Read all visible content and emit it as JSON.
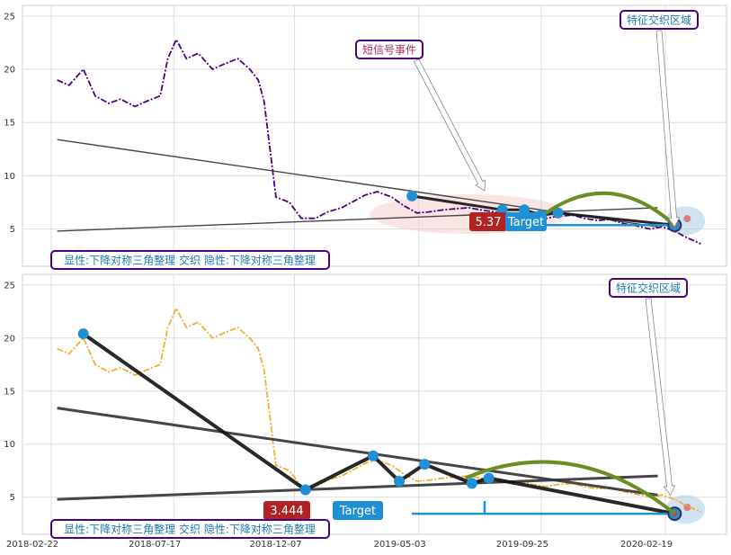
{
  "chart_data": [
    {
      "type": "line",
      "panel": "top",
      "ylim": [
        1.5,
        26
      ],
      "yticks": [
        5,
        10,
        15,
        20,
        25
      ],
      "line_color": "#4b0082",
      "x": [
        "2018-03-01",
        "2018-03-15",
        "2018-04-01",
        "2018-04-15",
        "2018-05-01",
        "2018-05-15",
        "2018-06-01",
        "2018-06-15",
        "2018-07-01",
        "2018-07-10",
        "2018-07-20",
        "2018-08-01",
        "2018-08-15",
        "2018-09-01",
        "2018-09-15",
        "2018-10-01",
        "2018-10-15",
        "2018-10-25",
        "2018-11-01",
        "2018-11-15",
        "2018-12-01",
        "2018-12-15",
        "2019-01-01",
        "2019-01-15",
        "2019-02-01",
        "2019-02-15",
        "2019-03-01",
        "2019-03-15",
        "2019-04-01",
        "2019-04-15",
        "2019-05-01",
        "2019-05-15",
        "2019-06-01",
        "2019-06-15",
        "2019-07-01",
        "2019-07-15",
        "2019-08-01",
        "2019-08-15",
        "2019-09-01",
        "2019-09-15",
        "2019-10-01",
        "2019-10-15",
        "2019-11-01",
        "2019-11-15",
        "2019-12-01",
        "2019-12-15",
        "2020-01-01",
        "2020-01-15",
        "2020-02-01",
        "2020-02-15",
        "2020-03-01",
        "2020-03-15",
        "2020-04-01"
      ],
      "values": [
        19.0,
        18.5,
        20.0,
        17.5,
        16.8,
        17.2,
        16.5,
        17.0,
        17.5,
        21.0,
        22.8,
        21.0,
        21.5,
        20.0,
        20.5,
        21.0,
        20.0,
        19.0,
        17.0,
        8.0,
        7.5,
        6.0,
        6.0,
        6.6,
        7.0,
        7.6,
        8.2,
        8.5,
        8.0,
        7.2,
        6.5,
        6.6,
        6.8,
        6.9,
        7.0,
        6.8,
        6.6,
        6.4,
        6.5,
        6.2,
        6.0,
        6.2,
        6.3,
        6.0,
        5.8,
        5.9,
        5.5,
        5.3,
        5.0,
        5.2,
        4.8,
        4.2,
        3.6
      ],
      "trend_lines": [
        {
          "from": [
            "2018-03-01",
            13.4
          ],
          "to": [
            "2020-02-10",
            5.2
          ]
        },
        {
          "from": [
            "2018-03-01",
            4.8
          ],
          "to": [
            "2020-02-10",
            7.0
          ]
        }
      ],
      "swing_points": [
        {
          "x": "2019-04-25",
          "y": 8.1
        },
        {
          "x": "2019-08-10",
          "y": 6.8
        },
        {
          "x": "2019-09-05",
          "y": 6.8
        },
        {
          "x": "2019-09-25",
          "y": 6.3
        },
        {
          "x": "2019-10-15",
          "y": 6.5
        },
        {
          "x": "2020-03-01",
          "y": 5.37
        }
      ],
      "target_level": 5.37,
      "price_label": "5.37",
      "target_label": "Target",
      "annotations": [
        {
          "text": "短信号事件",
          "points_to": [
            "2019-07-20",
            8.6
          ]
        },
        {
          "text": "特征交织区域",
          "points_to": [
            "2020-03-01",
            5.2
          ]
        }
      ],
      "legend": "显性:下降对称三角整理 交织 隐性:下降对称三角整理",
      "grid": true
    },
    {
      "type": "line",
      "panel": "bottom",
      "ylim": [
        1.5,
        26
      ],
      "yticks": [
        5,
        10,
        15,
        20,
        25
      ],
      "line_color": "#f0b030",
      "x": [
        "2018-03-01",
        "2018-03-15",
        "2018-04-01",
        "2018-04-15",
        "2018-05-01",
        "2018-05-15",
        "2018-06-01",
        "2018-06-15",
        "2018-07-01",
        "2018-07-10",
        "2018-07-20",
        "2018-08-01",
        "2018-08-15",
        "2018-09-01",
        "2018-09-15",
        "2018-10-01",
        "2018-10-15",
        "2018-10-25",
        "2018-11-01",
        "2018-11-15",
        "2018-12-01",
        "2018-12-15",
        "2019-01-01",
        "2019-01-15",
        "2019-02-01",
        "2019-02-15",
        "2019-03-01",
        "2019-03-15",
        "2019-04-01",
        "2019-04-15",
        "2019-05-01",
        "2019-05-15",
        "2019-06-01",
        "2019-06-15",
        "2019-07-01",
        "2019-07-15",
        "2019-08-01",
        "2019-08-15",
        "2019-09-01",
        "2019-09-15",
        "2019-10-01",
        "2019-10-15",
        "2019-11-01",
        "2019-11-15",
        "2019-12-01",
        "2019-12-15",
        "2020-01-01",
        "2020-01-15",
        "2020-02-01",
        "2020-02-15",
        "2020-03-01",
        "2020-03-15",
        "2020-04-01"
      ],
      "values": [
        19.0,
        18.5,
        20.0,
        17.5,
        16.8,
        17.2,
        16.5,
        17.0,
        17.5,
        21.0,
        22.8,
        21.0,
        21.5,
        20.0,
        20.5,
        21.0,
        20.0,
        19.0,
        17.0,
        8.0,
        7.5,
        6.0,
        6.0,
        6.6,
        7.0,
        7.6,
        8.2,
        8.5,
        8.0,
        7.2,
        6.5,
        6.6,
        6.8,
        6.9,
        7.0,
        6.8,
        6.6,
        6.4,
        6.5,
        6.2,
        6.0,
        6.2,
        6.3,
        6.0,
        5.8,
        5.9,
        5.5,
        5.3,
        5.0,
        5.2,
        4.8,
        4.2,
        3.6
      ],
      "trend_lines": [
        {
          "from": [
            "2018-03-01",
            13.4
          ],
          "to": [
            "2020-02-10",
            5.2
          ]
        },
        {
          "from": [
            "2018-03-01",
            4.8
          ],
          "to": [
            "2020-02-10",
            7.0
          ]
        }
      ],
      "swing_points": [
        {
          "x": "2018-04-01",
          "y": 20.4
        },
        {
          "x": "2018-12-20",
          "y": 5.7
        },
        {
          "x": "2019-03-10",
          "y": 8.9
        },
        {
          "x": "2019-04-10",
          "y": 6.5
        },
        {
          "x": "2019-05-10",
          "y": 8.1
        },
        {
          "x": "2019-07-05",
          "y": 6.3
        },
        {
          "x": "2019-07-25",
          "y": 6.8
        },
        {
          "x": "2020-03-01",
          "y": 3.444
        }
      ],
      "target_level": 3.444,
      "price_label": "3.444",
      "target_label": "Target",
      "annotations": [
        {
          "text": "特征交织区域",
          "points_to": [
            "2020-02-25",
            5.2
          ]
        }
      ],
      "legend": "显性:下降对称三角整理 交织 隐性:下降对称三角整理",
      "grid": true
    }
  ],
  "x_axis": {
    "ticks": [
      "2018-02-22",
      "2018-07-17",
      "2018-12-07",
      "2019-05-03",
      "2019-09-25",
      "2020-02-19"
    ]
  },
  "colors": {
    "swing_point": "#1f8fd6",
    "target_line": "#1f8fd6",
    "arc": "#6b8e23",
    "label_box": "#b22222",
    "target_box": "#1f8fd6",
    "note_border": "#4b0082",
    "ellipse_pink": "#f4c6c6",
    "ellipse_blue": "#a9cce3"
  }
}
